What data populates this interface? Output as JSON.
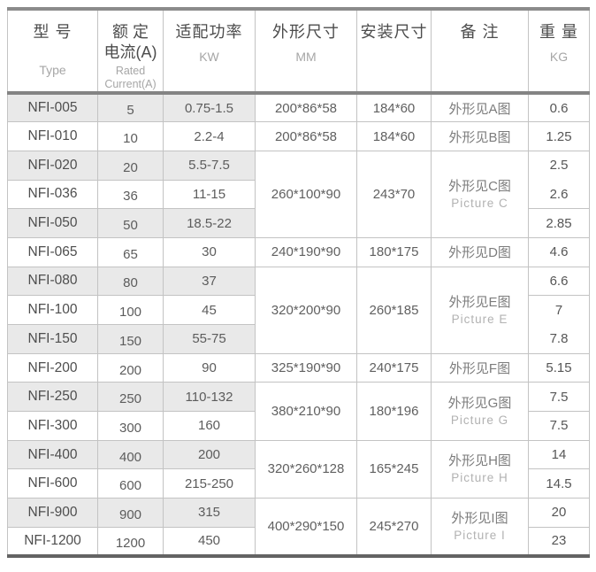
{
  "header": {
    "cols": [
      {
        "title": "型 号",
        "sub": "Type"
      },
      {
        "title": "额 定\n电流(A)",
        "sub": "Rated\nCurrent(A)"
      },
      {
        "title": "适配功率",
        "sub": "KW"
      },
      {
        "title": "外形尺寸",
        "sub": "MM"
      },
      {
        "title": "安装尺寸",
        "sub": ""
      },
      {
        "title": "备 注",
        "sub": ""
      },
      {
        "title": "重 量",
        "sub": "KG"
      }
    ]
  },
  "rows": [
    {
      "model": "NFI-005",
      "current": "5",
      "power": "0.75-1.5",
      "dim": "200*86*58",
      "install": "184*60",
      "remark": "外形见A图",
      "remark_en": "",
      "weight": "0.6"
    },
    {
      "model": "NFI-010",
      "current": "10",
      "power": "2.2-4",
      "dim": "200*86*58",
      "install": "184*60",
      "remark": "外形见B图",
      "remark_en": "",
      "weight": "1.25"
    },
    {
      "model": "NFI-020",
      "current": "20",
      "power": "5.5-7.5",
      "dim": "260*100*90",
      "install": "243*70",
      "remark": "外形见C图",
      "remark_en": "Picture C",
      "weight": "2.5"
    },
    {
      "model": "NFI-036",
      "current": "36",
      "power": "11-15",
      "weight": "2.6"
    },
    {
      "model": "NFI-050",
      "current": "50",
      "power": "18.5-22",
      "weight": "2.85"
    },
    {
      "model": "NFI-065",
      "current": "65",
      "power": "30",
      "dim": "240*190*90",
      "install": "180*175",
      "remark": "外形见D图",
      "remark_en": "",
      "weight": "4.6"
    },
    {
      "model": "NFI-080",
      "current": "80",
      "power": "37",
      "dim": "320*200*90",
      "install": "260*185",
      "remark": "外形见E图",
      "remark_en": "Picture E",
      "weight": "6.6"
    },
    {
      "model": "NFI-100",
      "current": "100",
      "power": "45",
      "weight": "7"
    },
    {
      "model": "NFI-150",
      "current": "150",
      "power": "55-75",
      "weight": "7.8"
    },
    {
      "model": "NFI-200",
      "current": "200",
      "power": "90",
      "dim": "325*190*90",
      "install": "240*175",
      "remark": "外形见F图",
      "remark_en": "",
      "weight": "5.15"
    },
    {
      "model": "NFI-250",
      "current": "250",
      "power": "110-132",
      "dim": "380*210*90",
      "install": "180*196",
      "remark": "外形见G图",
      "remark_en": "Picture G",
      "weight": "7.5"
    },
    {
      "model": "NFI-300",
      "current": "300",
      "power": "160",
      "weight": "7.5"
    },
    {
      "model": "NFI-400",
      "current": "400",
      "power": "200",
      "dim": "320*260*128",
      "install": "165*245",
      "remark": "外形见H图",
      "remark_en": "Picture H",
      "weight": "14"
    },
    {
      "model": "NFI-600",
      "current": "600",
      "power": "215-250",
      "weight": "14.5"
    },
    {
      "model": "NFI-900",
      "current": "900",
      "power": "315",
      "dim": "400*290*150",
      "install": "245*270",
      "remark": "外形见I图",
      "remark_en": "Picture I",
      "weight": "20"
    },
    {
      "model": "NFI-1200",
      "current": "1200",
      "power": "450",
      "weight": "23"
    }
  ],
  "colors": {
    "row_shade": "#e9e9e9",
    "thick_border_top": "#8b8b8b",
    "thick_border_bottom": "#636363",
    "thin_border": "#c3c3c3",
    "text_dark": "#4c4c4c",
    "text_body": "#5c5c5c",
    "text_light": "#a6a6a6"
  }
}
